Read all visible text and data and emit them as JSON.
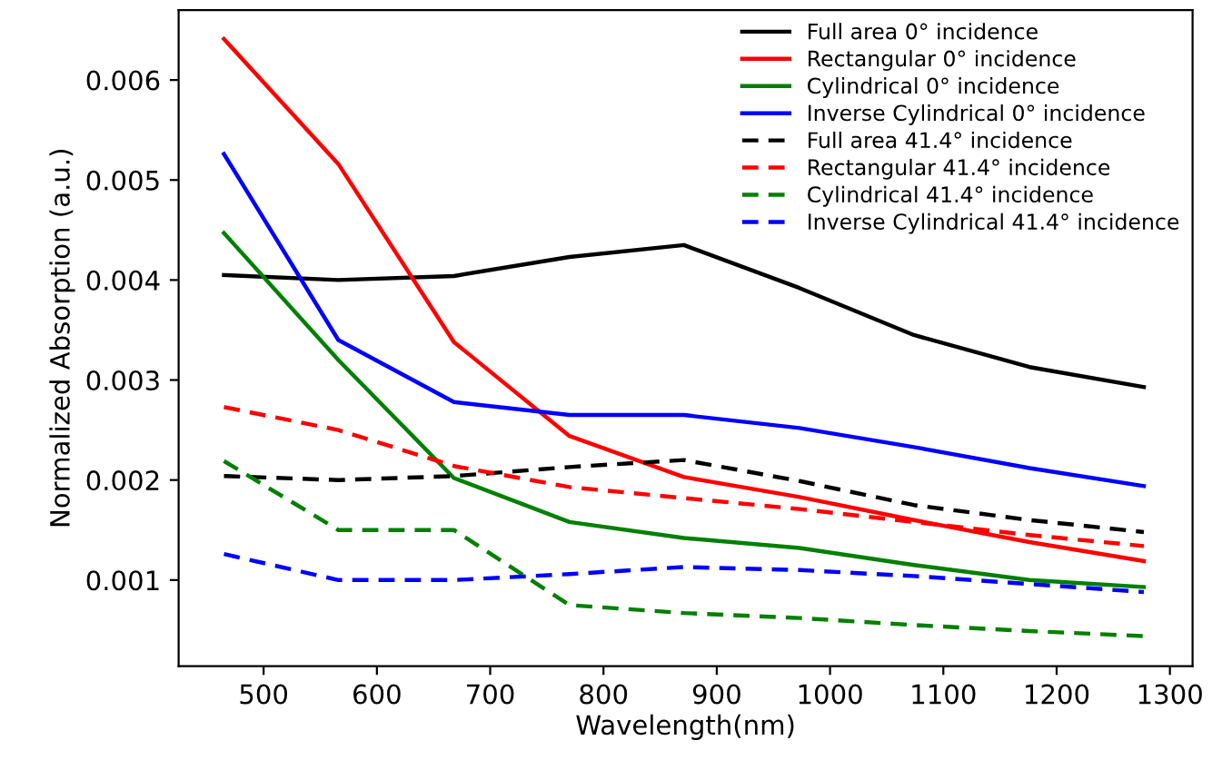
{
  "chart_data": {
    "type": "line",
    "xlabel": "Wavelength(nm)",
    "ylabel": "Normalized Absorption (a.u.)",
    "x": [
      465,
      566,
      668,
      770,
      871,
      973,
      1074,
      1176,
      1277
    ],
    "xlim": [
      425,
      1320
    ],
    "xticks": [
      500,
      600,
      700,
      800,
      900,
      1000,
      1100,
      1200,
      1300
    ],
    "ylim": [
      0.00014,
      0.0067
    ],
    "yticks": [
      0.001,
      0.002,
      0.003,
      0.004,
      0.005,
      0.006
    ],
    "legend": "top right",
    "grid": false,
    "marker": "none",
    "series": [
      {
        "name": "Full area 0° incidence",
        "color": "#000000",
        "line_style": "solid",
        "values": [
          0.00405,
          0.004,
          0.00404,
          0.00423,
          0.00435,
          0.00392,
          0.00345,
          0.00313,
          0.00293
        ]
      },
      {
        "name": "Rectangular 0° incidence",
        "color": "#ff0000",
        "line_style": "solid",
        "values": [
          0.00641,
          0.00516,
          0.00338,
          0.00244,
          0.00203,
          0.00183,
          0.0016,
          0.00138,
          0.00119
        ]
      },
      {
        "name": "Cylindrical 0° incidence",
        "color": "#008000",
        "line_style": "solid",
        "values": [
          0.00447,
          0.0032,
          0.00202,
          0.00158,
          0.00142,
          0.00132,
          0.00115,
          0.001,
          0.00093
        ]
      },
      {
        "name": "Inverse Cylindrical 0° incidence",
        "color": "#0000ff",
        "line_style": "solid",
        "values": [
          0.00526,
          0.0034,
          0.00278,
          0.00265,
          0.00265,
          0.00252,
          0.00233,
          0.00212,
          0.00194
        ]
      },
      {
        "name": "Full area 41.4° incidence",
        "color": "#000000",
        "line_style": "dashed",
        "values": [
          0.00204,
          0.002,
          0.00204,
          0.00213,
          0.0022,
          0.00199,
          0.00175,
          0.0016,
          0.00148
        ]
      },
      {
        "name": "Rectangular 41.4° incidence",
        "color": "#ff0000",
        "line_style": "dashed",
        "values": [
          0.00273,
          0.0025,
          0.00214,
          0.00193,
          0.00182,
          0.00171,
          0.00158,
          0.00145,
          0.00134
        ]
      },
      {
        "name": "Cylindrical 41.4° incidence",
        "color": "#008000",
        "line_style": "dashed",
        "values": [
          0.00219,
          0.0015,
          0.0015,
          0.00075,
          0.00067,
          0.00062,
          0.00055,
          0.00049,
          0.00044
        ]
      },
      {
        "name": "Inverse Cylindrical 41.4° incidence",
        "color": "#0000ff",
        "line_style": "dashed",
        "values": [
          0.00126,
          0.001,
          0.001,
          0.00106,
          0.00113,
          0.0011,
          0.00104,
          0.00096,
          0.00088
        ]
      }
    ]
  }
}
